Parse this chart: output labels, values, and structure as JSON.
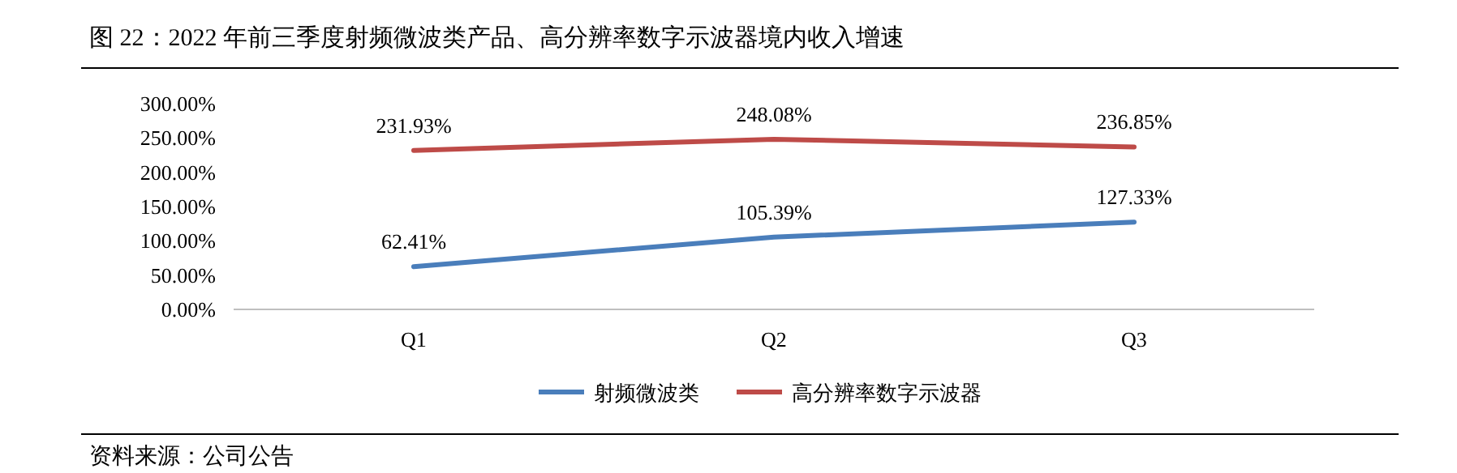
{
  "chart_data": {
    "type": "line",
    "title": "图 22：2022 年前三季度射频微波类产品、高分辨率数字示波器境内收入增速",
    "categories": [
      "Q1",
      "Q2",
      "Q3"
    ],
    "series": [
      {
        "name": "射频微波类",
        "color": "#4a7ebb",
        "values": [
          62.41,
          105.39,
          127.33
        ],
        "value_labels": [
          "62.41%",
          "105.39%",
          "127.33%"
        ]
      },
      {
        "name": "高分辨率数字示波器",
        "color": "#be4b48",
        "values": [
          231.93,
          248.08,
          236.85
        ],
        "value_labels": [
          "231.93%",
          "248.08%",
          "236.85%"
        ]
      }
    ],
    "ylim": [
      0,
      300
    ],
    "yticks": [
      {
        "value": 0,
        "label": "0.00%"
      },
      {
        "value": 50,
        "label": "50.00%"
      },
      {
        "value": 100,
        "label": "100.00%"
      },
      {
        "value": 150,
        "label": "150.00%"
      },
      {
        "value": 200,
        "label": "200.00%"
      },
      {
        "value": 250,
        "label": "250.00%"
      },
      {
        "value": 300,
        "label": "300.00%"
      }
    ],
    "grid": false,
    "legend": "bottom",
    "marker": "none",
    "line_style": "solid",
    "annotations": [
      "资料来源：公司公告"
    ]
  }
}
